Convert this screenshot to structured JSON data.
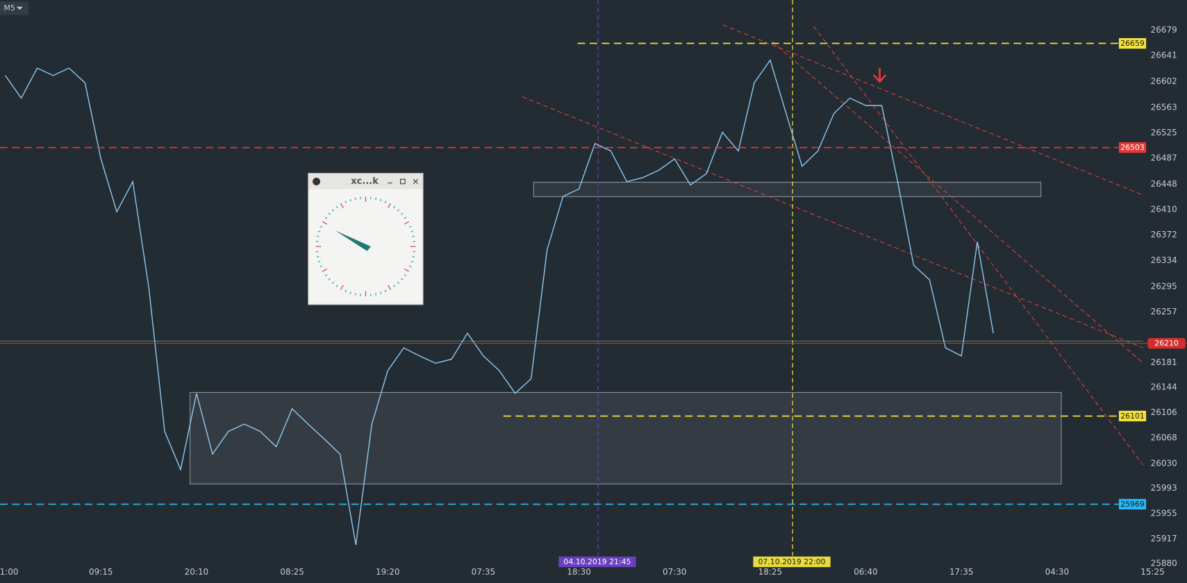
{
  "toolbar": {
    "timeframe": "M5"
  },
  "clock_window": {
    "title": "xc...k"
  },
  "chart_data": {
    "type": "line",
    "color": "#8ec9ee",
    "categories": [
      "1:00",
      null,
      null,
      null,
      null,
      null,
      "09:15",
      null,
      null,
      null,
      null,
      null,
      "20:10",
      null,
      null,
      null,
      null,
      null,
      "08:25",
      null,
      null,
      null,
      null,
      null,
      "19:20",
      null,
      null,
      null,
      null,
      null,
      "07:35",
      null,
      null,
      null,
      null,
      null,
      "18:30",
      null,
      null,
      null,
      null,
      null,
      "07:30",
      null,
      null,
      null,
      null,
      null,
      "18:25",
      null,
      null,
      null,
      null,
      null,
      "06:40",
      null,
      null,
      null,
      null,
      null,
      "17:35",
      null,
      null,
      null,
      null,
      null,
      "04:30",
      null,
      null,
      null,
      null,
      null,
      "15:25"
    ],
    "values": [
      26611,
      26577,
      26622,
      26611,
      26622,
      26600,
      26486,
      26407,
      26452,
      26294,
      26078,
      26021,
      26135,
      26044,
      26078,
      26089,
      26078,
      26055,
      26112,
      26089,
      26067,
      26044,
      25908,
      26089,
      26169,
      26203,
      26191,
      26180,
      26186,
      26225,
      26191,
      26169,
      26135,
      26157,
      26350,
      26430,
      26441,
      26509,
      26498,
      26452,
      26458,
      26469,
      26486,
      26447,
      26464,
      26526,
      26498,
      26600,
      26634,
      26554,
      26475,
      26498,
      26554,
      26577,
      26566,
      26566,
      26452,
      26327,
      26305,
      26203,
      26191,
      26362,
      26225,
      null,
      null,
      null,
      null,
      null,
      null,
      null,
      null,
      null,
      null
    ],
    "ylim": [
      25851,
      26724
    ],
    "yticks": [
      26679,
      26641,
      26602,
      26563,
      26525,
      26487,
      26448,
      26410,
      26372,
      26334,
      26295,
      26257,
      26181,
      26144,
      26106,
      26068,
      26030,
      25993,
      25955,
      25917,
      25880
    ],
    "levels": [
      {
        "value": 26659,
        "color": "#f2e33a"
      },
      {
        "value": 26503,
        "color": "#e53935"
      },
      {
        "value": 26210,
        "color": "#d32f2f"
      },
      {
        "value": 26101,
        "color": "#f2e33a"
      },
      {
        "value": 25969,
        "color": "#29b6f6"
      }
    ],
    "markers": [
      {
        "label": "04.10.2019 21:45",
        "color": "#6a3fc0"
      },
      {
        "label": "07.10.2019 22:00",
        "color": "#e8dc3c"
      }
    ]
  }
}
